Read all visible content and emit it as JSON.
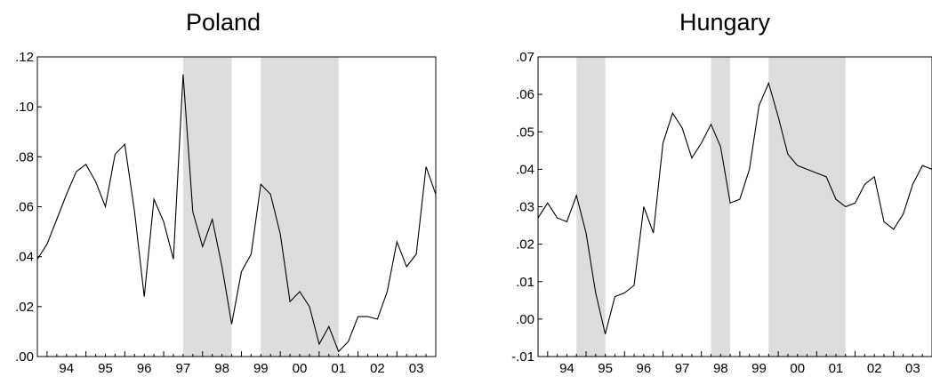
{
  "chart_data": [
    {
      "type": "line",
      "title": "Poland",
      "xlabel": "",
      "ylabel": "",
      "ylim": [
        0,
        0.12
      ],
      "grid": false,
      "legend": "none",
      "x_range": [
        1993.75,
        2004.0
      ],
      "x_ticks": [
        {
          "label": "94",
          "x": 1994.0
        },
        {
          "label": "95",
          "x": 1995.0
        },
        {
          "label": "96",
          "x": 1996.0
        },
        {
          "label": "97",
          "x": 1997.0
        },
        {
          "label": "98",
          "x": 1998.0
        },
        {
          "label": "99",
          "x": 1999.0
        },
        {
          "label": "00",
          "x": 2000.0
        },
        {
          "label": "01",
          "x": 2001.0
        },
        {
          "label": "02",
          "x": 2002.0
        },
        {
          "label": "03",
          "x": 2003.0
        }
      ],
      "y_ticks": [
        {
          "label": ".00",
          "value": 0.0
        },
        {
          "label": ".02",
          "value": 0.02
        },
        {
          "label": ".04",
          "value": 0.04
        },
        {
          "label": ".06",
          "value": 0.06
        },
        {
          "label": ".08",
          "value": 0.08
        },
        {
          "label": ".10",
          "value": 0.1
        },
        {
          "label": ".12",
          "value": 0.12
        }
      ],
      "shaded_periods": [
        [
          1997.5,
          1998.75
        ],
        [
          1999.5,
          2001.5
        ]
      ],
      "shade_color": "#dddddd",
      "line_color": "#000000",
      "x": [
        1993.75,
        1994.0,
        1994.25,
        1994.5,
        1994.75,
        1995.0,
        1995.25,
        1995.5,
        1995.75,
        1996.0,
        1996.25,
        1996.5,
        1996.75,
        1997.0,
        1997.25,
        1997.5,
        1997.75,
        1998.0,
        1998.25,
        1998.5,
        1998.75,
        1999.0,
        1999.25,
        1999.5,
        1999.75,
        2000.0,
        2000.25,
        2000.5,
        2000.75,
        2001.0,
        2001.25,
        2001.5,
        2001.75,
        2002.0,
        2002.25,
        2002.5,
        2002.75,
        2003.0,
        2003.25,
        2003.5,
        2003.75,
        2004.0
      ],
      "values": [
        0.039,
        0.045,
        0.055,
        0.065,
        0.074,
        0.077,
        0.07,
        0.06,
        0.081,
        0.085,
        0.058,
        0.024,
        0.063,
        0.054,
        0.039,
        0.113,
        0.058,
        0.044,
        0.055,
        0.036,
        0.013,
        0.034,
        0.041,
        0.069,
        0.065,
        0.049,
        0.022,
        0.026,
        0.02,
        0.005,
        0.012,
        0.002,
        0.006,
        0.016,
        0.016,
        0.015,
        0.026,
        0.046,
        0.036,
        0.041,
        0.076,
        0.065
      ]
    },
    {
      "type": "line",
      "title": "Hungary",
      "xlabel": "",
      "ylabel": "",
      "ylim": [
        -0.01,
        0.07
      ],
      "grid": false,
      "legend": "none",
      "x_range": [
        1993.75,
        2004.0
      ],
      "x_ticks": [
        {
          "label": "94",
          "x": 1994.0
        },
        {
          "label": "95",
          "x": 1995.0
        },
        {
          "label": "96",
          "x": 1996.0
        },
        {
          "label": "97",
          "x": 1997.0
        },
        {
          "label": "98",
          "x": 1998.0
        },
        {
          "label": "99",
          "x": 1999.0
        },
        {
          "label": "00",
          "x": 2000.0
        },
        {
          "label": "01",
          "x": 2001.0
        },
        {
          "label": "02",
          "x": 2002.0
        },
        {
          "label": "03",
          "x": 2003.0
        }
      ],
      "y_ticks": [
        {
          "label": "-.01",
          "value": -0.01
        },
        {
          "label": ".00",
          "value": 0.0
        },
        {
          "label": ".01",
          "value": 0.01
        },
        {
          "label": ".02",
          "value": 0.02
        },
        {
          "label": ".03",
          "value": 0.03
        },
        {
          "label": ".04",
          "value": 0.04
        },
        {
          "label": ".05",
          "value": 0.05
        },
        {
          "label": ".06",
          "value": 0.06
        },
        {
          "label": ".07",
          "value": 0.07
        }
      ],
      "shaded_periods": [
        [
          1994.75,
          1995.5
        ],
        [
          1998.25,
          1998.75
        ],
        [
          1999.75,
          2001.75
        ]
      ],
      "shade_color": "#dddddd",
      "line_color": "#000000",
      "x": [
        1993.75,
        1994.0,
        1994.25,
        1994.5,
        1994.75,
        1995.0,
        1995.25,
        1995.5,
        1995.75,
        1996.0,
        1996.25,
        1996.5,
        1996.75,
        1997.0,
        1997.25,
        1997.5,
        1997.75,
        1998.0,
        1998.25,
        1998.5,
        1998.75,
        1999.0,
        1999.25,
        1999.5,
        1999.75,
        2000.0,
        2000.25,
        2000.5,
        2000.75,
        2001.0,
        2001.25,
        2001.5,
        2001.75,
        2002.0,
        2002.25,
        2002.5,
        2002.75,
        2003.0,
        2003.25,
        2003.5,
        2003.75,
        2004.0
      ],
      "values": [
        0.027,
        0.031,
        0.027,
        0.026,
        0.033,
        0.023,
        0.007,
        -0.004,
        0.006,
        0.007,
        0.009,
        0.03,
        0.023,
        0.047,
        0.055,
        0.051,
        0.043,
        0.047,
        0.052,
        0.046,
        0.031,
        0.032,
        0.04,
        0.057,
        0.063,
        0.054,
        0.044,
        0.041,
        0.04,
        0.039,
        0.038,
        0.032,
        0.03,
        0.031,
        0.036,
        0.038,
        0.026,
        0.024,
        0.028,
        0.036,
        0.041,
        0.04
      ]
    }
  ]
}
